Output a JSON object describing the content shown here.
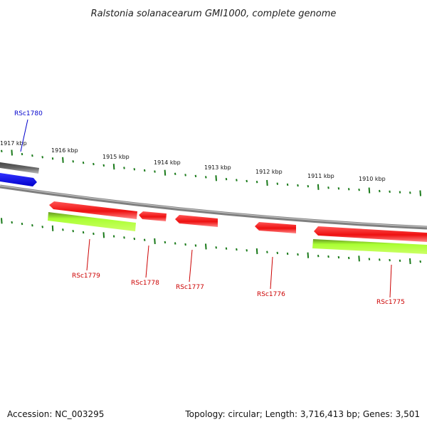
{
  "title": "Ralstonia solanacearum GMI1000, complete genome",
  "footer": {
    "accession": "Accession: NC_003295",
    "stats": "Topology: circular; Length: 3,716,413 bp; Genes: 3,501"
  },
  "colors": {
    "backbone": "#7f7f7f",
    "tick": "#1a7a1a",
    "reverse_gene": "#ee1111",
    "cds_band": "#99ee22",
    "forward_gene": "#0000ee",
    "forward_other": "#555555",
    "label_reverse": "#cc0000",
    "label_forward": "#0000cc"
  },
  "scale_labels": [
    "1917 kbp",
    "1916 kbp",
    "1915 kbp",
    "1914 kbp",
    "1913 kbp",
    "1912 kbp",
    "1911 kbp",
    "1910 kbp"
  ],
  "gene_labels": {
    "rsc1780": "RSc1780",
    "rsc1779": "RSc1779",
    "rsc1778": "RSc1778",
    "rsc1777": "RSc1777",
    "rsc1776": "RSc1776",
    "rsc1775": "RSc1775"
  }
}
